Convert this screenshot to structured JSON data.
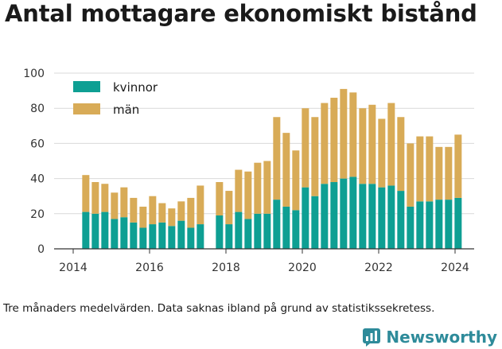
{
  "title": "Antal mottagare ekonomiskt bistånd",
  "footnote": "Tre månaders medelvärden. Data saknas ibland på grund av statistikssekretess.",
  "brand": {
    "name": "Newsworthy",
    "icon": "bar-chart-logo-icon",
    "color": "#2e8b9a"
  },
  "colors": {
    "kvinnor": "#0e9f93",
    "man": "#d8ab57",
    "grid": "#d9d9d9",
    "axis": "#333333"
  },
  "chart_data": {
    "type": "bar",
    "stacked": true,
    "title": "Antal mottagare ekonomiskt bistånd",
    "xlabel": "",
    "ylabel": "",
    "ylim": [
      0,
      100
    ],
    "xlim": [
      2013.5,
      2024.5
    ],
    "yticks": [
      0,
      20,
      40,
      60,
      80,
      100
    ],
    "xticks": [
      2014,
      2016,
      2018,
      2020,
      2022,
      2024
    ],
    "grid": true,
    "legend_position": "top-left",
    "x": [
      2014.33,
      2014.58,
      2014.83,
      2015.08,
      2015.33,
      2015.58,
      2015.83,
      2016.08,
      2016.33,
      2016.58,
      2016.83,
      2017.08,
      2017.33,
      2017.83,
      2018.08,
      2018.33,
      2018.58,
      2018.83,
      2019.08,
      2019.33,
      2019.58,
      2019.83,
      2020.08,
      2020.33,
      2020.58,
      2020.83,
      2021.08,
      2021.33,
      2021.58,
      2021.83,
      2022.08,
      2022.33,
      2022.58,
      2022.83,
      2023.08,
      2023.33,
      2023.58,
      2023.83,
      2024.08
    ],
    "series": [
      {
        "name": "kvinnor",
        "values": [
          21,
          20,
          21,
          17,
          18,
          15,
          12,
          14,
          15,
          13,
          16,
          12,
          14,
          19,
          14,
          21,
          17,
          20,
          20,
          28,
          24,
          22,
          35,
          30,
          37,
          38,
          40,
          41,
          37,
          37,
          35,
          36,
          33,
          24,
          27,
          27,
          28,
          28,
          29
        ]
      },
      {
        "name": "män",
        "values": [
          21,
          18,
          16,
          15,
          17,
          14,
          12,
          16,
          11,
          10,
          11,
          17,
          22,
          19,
          19,
          24,
          27,
          29,
          30,
          47,
          42,
          34,
          45,
          45,
          46,
          48,
          51,
          48,
          43,
          45,
          39,
          47,
          42,
          36,
          37,
          37,
          30,
          30,
          36
        ]
      }
    ]
  }
}
